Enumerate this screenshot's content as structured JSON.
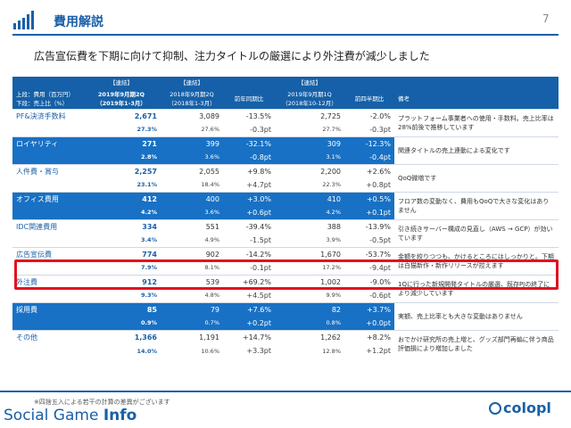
{
  "header": {
    "title": "費用解説",
    "page_number": "7"
  },
  "subtitle": "広告宣伝費を下期に向けて抑制、注力タイトルの厳選により外注費が減少しました",
  "table": {
    "tags": [
      "【連結】",
      "【連結】",
      "【連結】"
    ],
    "row_label_1": "上段：費用（百万円）",
    "row_label_2": "下段：売上比（%）",
    "col_current": "2019年9月期2Q",
    "col_current_sub": "（2019年1-3月）",
    "col_prev": "2018年9月期2Q",
    "col_prev_sub": "（2018年1-3月）",
    "col_yoy": "前年同期比",
    "col_prevq": "2019年9月期1Q",
    "col_prevq_sub": "（2018年10-12月）",
    "col_qoq": "前四半期比",
    "col_note": "備考",
    "rows": [
      {
        "name": "PF&決済手数料",
        "cur": "2,671",
        "prev": "3,089",
        "yoy": "-13.5%",
        "prevq": "2,725",
        "qoq": "-2.0%",
        "cur_pct": "27.3%",
        "prev_pct": "27.6%",
        "yoy_pt": "-0.3pt",
        "prevq_pct": "27.7%",
        "qoq_pt": "-0.3pt",
        "note": "プラットフォーム事業者への使用・手数料。売上比率は28%前後で推移しています"
      },
      {
        "name": "ロイヤリティ",
        "cur": "271",
        "prev": "399",
        "yoy": "-32.1%",
        "prevq": "309",
        "qoq": "-12.3%",
        "cur_pct": "2.8%",
        "prev_pct": "3.6%",
        "yoy_pt": "-0.8pt",
        "prevq_pct": "3.1%",
        "qoq_pt": "-0.4pt",
        "note": "関連タイトルの売上連動による変化です"
      },
      {
        "name": "人件費・賞与",
        "cur": "2,257",
        "prev": "2,055",
        "yoy": "+9.8%",
        "prevq": "2,200",
        "qoq": "+2.6%",
        "cur_pct": "23.1%",
        "prev_pct": "18.4%",
        "yoy_pt": "+4.7pt",
        "prevq_pct": "22.3%",
        "qoq_pt": "+0.8pt",
        "note": "QoQ微増です"
      },
      {
        "name": "オフィス費用",
        "cur": "412",
        "prev": "400",
        "yoy": "+3.0%",
        "prevq": "410",
        "qoq": "+0.5%",
        "cur_pct": "4.2%",
        "prev_pct": "3.6%",
        "yoy_pt": "+0.6pt",
        "prevq_pct": "4.2%",
        "qoq_pt": "+0.1pt",
        "note": "フロア数の変動なく、費用もQoQで大きな変化はありません"
      },
      {
        "name": "IDC関連費用",
        "cur": "334",
        "prev": "551",
        "yoy": "-39.4%",
        "prevq": "388",
        "qoq": "-13.9%",
        "cur_pct": "3.4%",
        "prev_pct": "4.9%",
        "yoy_pt": "-1.5pt",
        "prevq_pct": "3.9%",
        "qoq_pt": "-0.5pt",
        "note": "引き続きサーバー構成の見直し（AWS → GCP）が効いています"
      },
      {
        "name": "広告宣伝費",
        "cur": "774",
        "prev": "902",
        "yoy": "-14.2%",
        "prevq": "1,670",
        "qoq": "-53.7%",
        "cur_pct": "7.9%",
        "prev_pct": "8.1%",
        "yoy_pt": "-0.1pt",
        "prevq_pct": "17.2%",
        "qoq_pt": "-9.4pt",
        "note": "金額を絞りつつも、かけるところにはしっかりと。下期は白猫新作・新作リリースが控えます"
      },
      {
        "name": "外注費",
        "cur": "912",
        "prev": "539",
        "yoy": "+69.2%",
        "prevq": "1,002",
        "qoq": "-9.0%",
        "cur_pct": "9.3%",
        "prev_pct": "4.8%",
        "yoy_pt": "+4.5pt",
        "prevq_pct": "9.9%",
        "qoq_pt": "-0.6pt",
        "note": "1Qに行った新規開発タイトルの厳選、既存PJの終了により減少しています"
      },
      {
        "name": "採用費",
        "cur": "85",
        "prev": "79",
        "yoy": "+7.6%",
        "prevq": "82",
        "qoq": "+3.7%",
        "cur_pct": "0.9%",
        "prev_pct": "0.7%",
        "yoy_pt": "+0.2pt",
        "prevq_pct": "0.8%",
        "qoq_pt": "+0.0pt",
        "note": "実額、売上比率とも大きな変動はありません"
      },
      {
        "name": "その他",
        "cur": "1,366",
        "prev": "1,191",
        "yoy": "+14.7%",
        "prevq": "1,262",
        "qoq": "+8.2%",
        "cur_pct": "14.0%",
        "prev_pct": "10.6%",
        "yoy_pt": "+3.3pt",
        "prevq_pct": "12.8%",
        "qoq_pt": "+1.2pt",
        "note": "おでかけ研究所の売上増と、グッズ部門再編に伴う商品評価損により増加しました"
      }
    ]
  },
  "footnote": "※四捨五入による若干の計算の差異がございます",
  "watermark_prefix": "Social Game ",
  "watermark_bold": "Info",
  "brand": "colopl",
  "colors": {
    "accent": "#1a5fa8",
    "row_blue": "#1871c4",
    "highlight": "#e2131f"
  }
}
